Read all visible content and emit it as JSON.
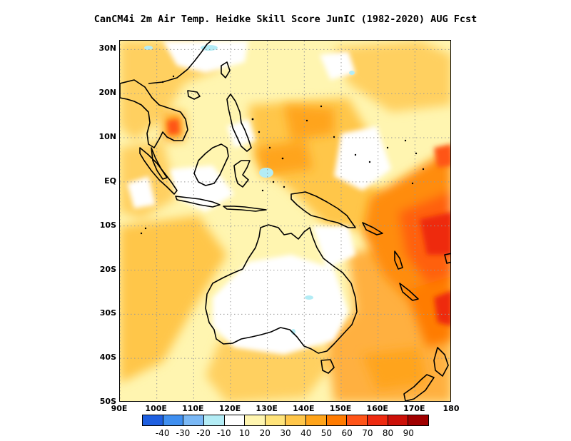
{
  "title": "CanCM4i  2m Air Temp. Heidke Skill Score JunIC (1982-2020) AUG Fcst",
  "map": {
    "lon_range": [
      90,
      180
    ],
    "lat_range": [
      -50,
      32
    ],
    "lat_ticks": [
      {
        "value": 30,
        "label": "30N"
      },
      {
        "value": 20,
        "label": "20N"
      },
      {
        "value": 10,
        "label": "10N"
      },
      {
        "value": 0,
        "label": "EQ"
      },
      {
        "value": -10,
        "label": "10S"
      },
      {
        "value": -20,
        "label": "20S"
      },
      {
        "value": -30,
        "label": "30S"
      },
      {
        "value": -40,
        "label": "40S"
      },
      {
        "value": -50,
        "label": "50S"
      }
    ],
    "lon_ticks": [
      {
        "value": 90,
        "label": "90E"
      },
      {
        "value": 100,
        "label": "100E"
      },
      {
        "value": 110,
        "label": "110E"
      },
      {
        "value": 120,
        "label": "120E"
      },
      {
        "value": 130,
        "label": "130E"
      },
      {
        "value": 140,
        "label": "140E"
      },
      {
        "value": 150,
        "label": "150E"
      },
      {
        "value": 160,
        "label": "160E"
      },
      {
        "value": 170,
        "label": "170E"
      },
      {
        "value": 180,
        "label": "180"
      }
    ],
    "gridlines": "dotted",
    "colorbar": {
      "colors": [
        "#1e5fe0",
        "#3f8ff0",
        "#7ab8f5",
        "#b3ecf5",
        "#ffffff",
        "#fff5b0",
        "#ffe37a",
        "#ffc64a",
        "#ffa41a",
        "#ff7b00",
        "#ff5418",
        "#ee2a10",
        "#cc1008",
        "#a00000"
      ],
      "labels": [
        "-40",
        "-30",
        "-20",
        "-10",
        "10",
        "20",
        "30",
        "40",
        "50",
        "60",
        "70",
        "80",
        "90"
      ]
    }
  }
}
